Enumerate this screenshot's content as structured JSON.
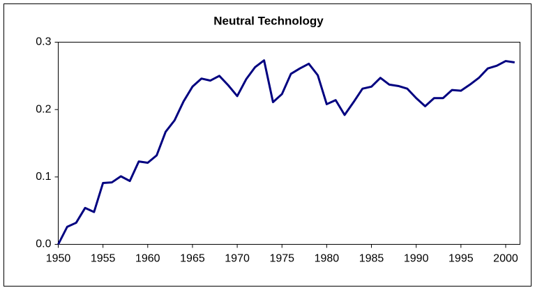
{
  "chart_data": {
    "type": "line",
    "title": "Neutral Technology",
    "x": [
      1950,
      1951,
      1952,
      1953,
      1954,
      1955,
      1956,
      1957,
      1958,
      1959,
      1960,
      1961,
      1962,
      1963,
      1964,
      1965,
      1966,
      1967,
      1968,
      1969,
      1970,
      1971,
      1972,
      1973,
      1974,
      1975,
      1976,
      1977,
      1978,
      1979,
      1980,
      1981,
      1982,
      1983,
      1984,
      1985,
      1986,
      1987,
      1988,
      1989,
      1990,
      1991,
      1992,
      1993,
      1994,
      1995,
      1996,
      1997,
      1998,
      1999,
      2000,
      2001
    ],
    "values": [
      0.0,
      0.026,
      0.032,
      0.054,
      0.048,
      0.091,
      0.092,
      0.101,
      0.094,
      0.123,
      0.121,
      0.132,
      0.167,
      0.184,
      0.212,
      0.234,
      0.246,
      0.243,
      0.25,
      0.236,
      0.22,
      0.245,
      0.263,
      0.273,
      0.211,
      0.223,
      0.253,
      0.261,
      0.268,
      0.251,
      0.208,
      0.214,
      0.192,
      0.211,
      0.231,
      0.234,
      0.247,
      0.237,
      0.235,
      0.231,
      0.217,
      0.205,
      0.217,
      0.217,
      0.229,
      0.228,
      0.237,
      0.247,
      0.261,
      0.265,
      0.272,
      0.27
    ],
    "color": "#000080",
    "xlim": [
      1950,
      2001.6
    ],
    "xticks": [
      1950,
      1955,
      1960,
      1965,
      1970,
      1975,
      1980,
      1985,
      1990,
      1995,
      2000
    ],
    "ylim": [
      0,
      0.3
    ],
    "yticks": [
      {
        "value": 0,
        "label": "0.0"
      },
      0.1,
      0.2,
      0.3
    ],
    "grid": false
  }
}
